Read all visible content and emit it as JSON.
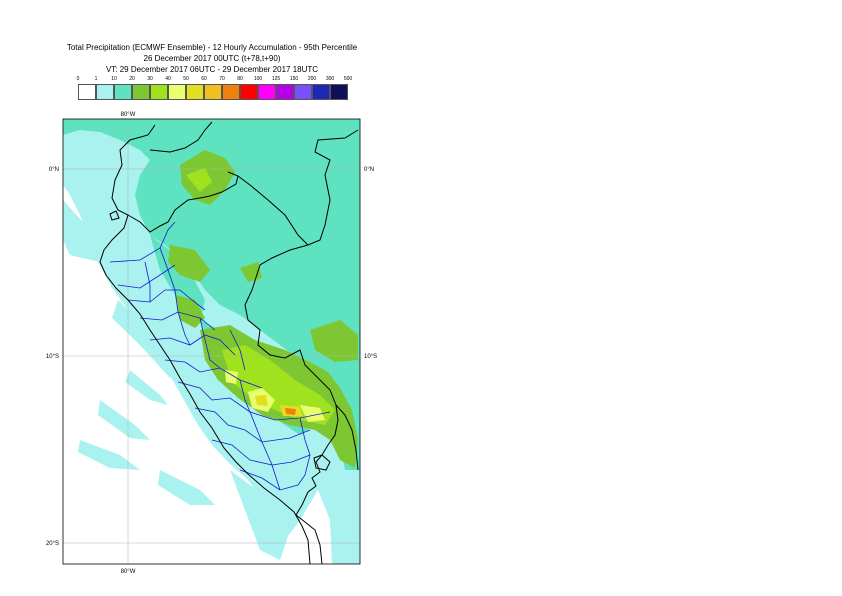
{
  "title": {
    "line1": "Total Precipitation (ECMWF Ensemble) - 12 Hourly Accumulation - 95th Percentile",
    "line2": "26 December 2017 00UTC (t+78,t+90)",
    "line3": "VT: 29 December 2017 06UTC - 29 December 2017 18UTC"
  },
  "legend": {
    "labels": [
      "0",
      "1",
      "10",
      "20",
      "30",
      "40",
      "50",
      "60",
      "70",
      "80",
      "100",
      "125",
      "150",
      "200",
      "300",
      "500"
    ],
    "colors": [
      "#ffffff",
      "#a9f2f0",
      "#5fe2c0",
      "#7dc832",
      "#a0e21e",
      "#e8ff6e",
      "#e0e020",
      "#f0c020",
      "#f08010",
      "#ff0000",
      "#ff00ff",
      "#b400e6",
      "#7850ff",
      "#1e28b4",
      "#10105a"
    ]
  },
  "map": {
    "lon_label_top": "80°W",
    "lon_label_bottom": "80°W",
    "lat_labels_left": [
      "0°N",
      "10°S",
      "20°S"
    ],
    "lat_labels_right": [
      "0°N",
      "10°S"
    ]
  }
}
